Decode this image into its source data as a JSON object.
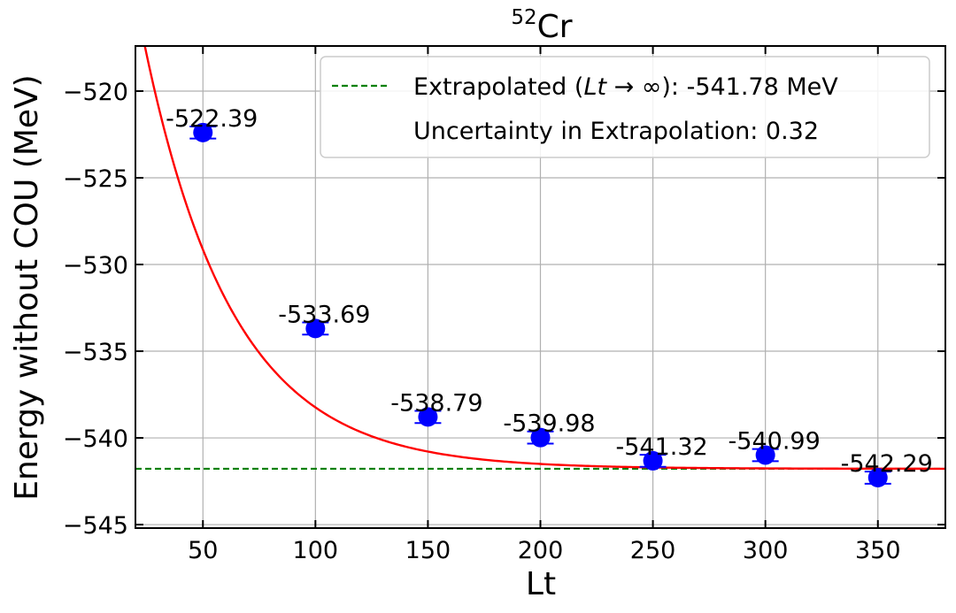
{
  "chart_data": {
    "type": "scatter",
    "title_base": "Cr",
    "title_sup": "52",
    "xlabel": "Lt",
    "ylabel": "Energy without COU (MeV)",
    "xlim": [
      20,
      380
    ],
    "ylim": [
      -545.2,
      -517.4
    ],
    "x_ticks": [
      50,
      100,
      150,
      200,
      250,
      300,
      350
    ],
    "y_ticks": [
      -520,
      -525,
      -530,
      -535,
      -540,
      -545
    ],
    "x_tick_labels": [
      "50",
      "100",
      "150",
      "200",
      "250",
      "300",
      "350"
    ],
    "y_tick_labels": [
      "−520",
      "−525",
      "−530",
      "−535",
      "−540",
      "−545"
    ],
    "grid": true,
    "points": {
      "x": [
        50,
        100,
        150,
        200,
        250,
        300,
        350
      ],
      "y": [
        -522.39,
        -533.69,
        -538.79,
        -539.98,
        -541.32,
        -540.99,
        -542.29
      ],
      "yerr": [
        0.35,
        0.35,
        0.35,
        0.35,
        0.35,
        0.35,
        0.35
      ],
      "labels": [
        "-522.39",
        "-533.69",
        "-538.79",
        "-539.98",
        "-541.32",
        "-540.99",
        "-542.29"
      ],
      "color": "#0000ff"
    },
    "fit_curve": {
      "form": "a + b*exp(-x/c)",
      "a": -541.78,
      "b": 45.1,
      "c": 39.3,
      "color": "#ff0000"
    },
    "extrapolated_value": -541.78,
    "extrapolated_color": "#008000",
    "legend": {
      "placement": "top-right",
      "entries": [
        {
          "prefix": "Extrapolated (",
          "math": "Lt",
          "suffix": " → ∞): -541.78 MeV"
        },
        {
          "text": "Uncertainty in Extrapolation: 0.32"
        }
      ]
    }
  }
}
